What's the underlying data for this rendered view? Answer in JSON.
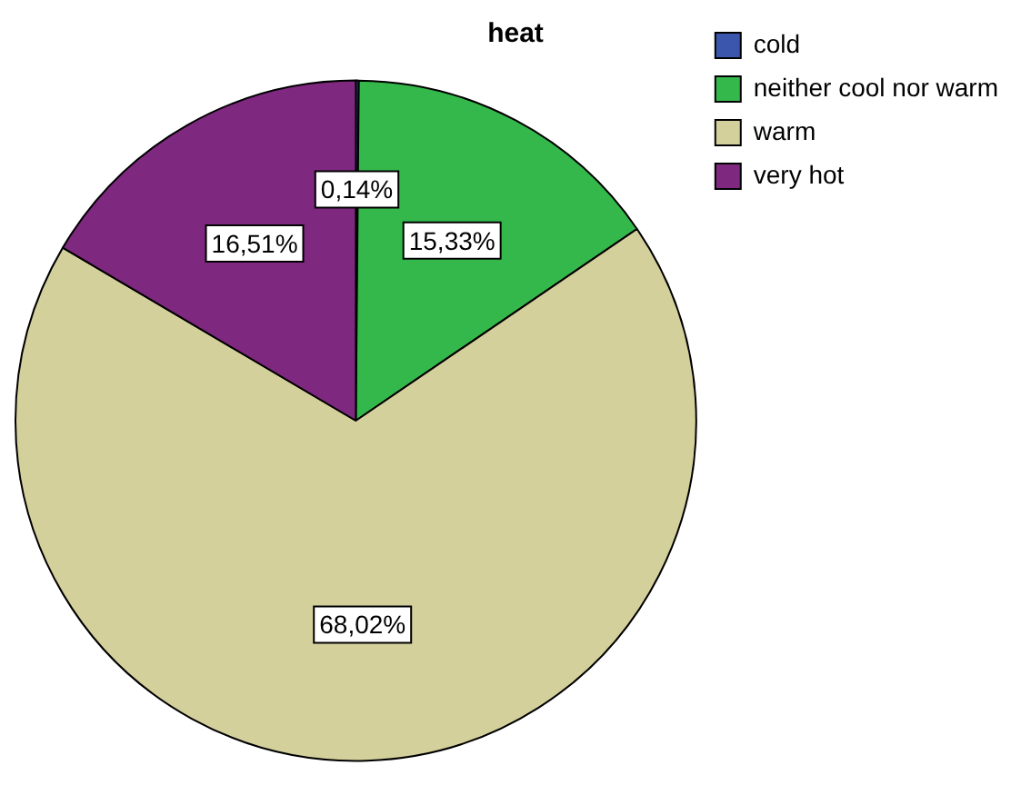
{
  "chart_data": {
    "type": "pie",
    "title": "heat",
    "categories": [
      "cold",
      "neither cool nor warm",
      "warm",
      "very hot"
    ],
    "values": [
      0.14,
      15.33,
      68.02,
      16.51
    ],
    "colors": [
      "#3b57ad",
      "#35b84b",
      "#d4d09c",
      "#7e287f"
    ],
    "value_labels": [
      "0,14%",
      "15,33%",
      "68,02%",
      "16,51%"
    ],
    "legend": "top right"
  }
}
